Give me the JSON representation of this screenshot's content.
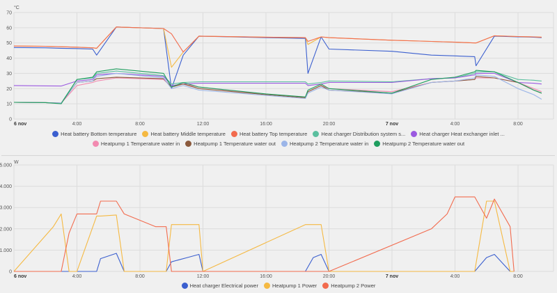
{
  "chart_data": [
    {
      "type": "line",
      "title": "",
      "ylabel": "°C",
      "xlabel": "",
      "ylim": [
        0,
        70
      ],
      "yticks": [
        "0",
        "10",
        "20",
        "30",
        "40",
        "50",
        "60",
        "70"
      ],
      "xticks": [
        "6 nov",
        "4:00",
        "8:00",
        "12:00",
        "16:00",
        "20:00",
        "7 nov",
        "4:00",
        "8:00"
      ],
      "grid": true,
      "legend_position": "bottom",
      "x": [
        "00:00",
        "02:00",
        "03:00",
        "04:00",
        "05:00",
        "05:15",
        "06:30",
        "09:30",
        "10:00",
        "10:45",
        "11:45",
        "16:00",
        "18:30",
        "18:40",
        "19:30",
        "20:00",
        "00:00",
        "02:30",
        "04:00",
        "05:15",
        "05:20",
        "06:30",
        "08:00",
        "09:00",
        "09:30"
      ],
      "series": [
        {
          "name": "Heat battery Bottom temperature",
          "color": "#3b5fcf",
          "values": [
            47,
            46.8,
            46.5,
            46.3,
            46,
            42,
            60.5,
            59.5,
            20,
            42,
            54.5,
            53.5,
            53,
            30,
            54,
            46,
            44.5,
            42,
            41.5,
            41,
            35,
            54.5,
            54,
            53.8,
            53.5
          ]
        },
        {
          "name": "Heat battery Middle temperature",
          "color": "#f5b942",
          "values": [
            48,
            47.8,
            47.5,
            47.2,
            46.8,
            46.5,
            60.5,
            59.5,
            34,
            44,
            54.5,
            53.8,
            53.5,
            49,
            54,
            53.5,
            51.8,
            51,
            50.5,
            50,
            50,
            54.7,
            54.2,
            54,
            53.8
          ]
        },
        {
          "name": "Heat battery Top temperature",
          "color": "#f26b4e",
          "values": [
            48,
            47.8,
            47.5,
            47.2,
            46.8,
            46.5,
            60.5,
            59.5,
            56,
            44,
            54.5,
            53.8,
            53.5,
            51,
            54,
            53.5,
            51.8,
            51,
            50.5,
            50,
            50,
            54.7,
            54.2,
            54,
            53.8
          ]
        },
        {
          "name": "Heat charger Distribution system s...",
          "color": "#5bbf9f",
          "values": [
            11,
            10.8,
            10.5,
            26,
            27,
            30,
            31.5,
            28.5,
            23,
            24,
            24.5,
            24.5,
            24.5,
            23,
            24,
            25,
            24.5,
            26.5,
            27,
            30,
            31,
            31,
            26,
            25.5,
            25
          ]
        },
        {
          "name": "Heat charger Heat exchanger inlet ...",
          "color": "#9b59e0",
          "values": [
            22,
            21.8,
            21.7,
            25,
            26,
            29,
            30,
            28,
            22,
            23,
            23.5,
            23.5,
            23.5,
            22,
            23,
            24,
            24,
            26.5,
            27,
            29,
            30,
            30,
            24,
            23.5,
            23
          ]
        },
        {
          "name": "Heatpump 1 Temperature water in",
          "color": "#f28ab0",
          "values": [
            11,
            10.8,
            10.5,
            22,
            24,
            25,
            27,
            26,
            21,
            23,
            21,
            16,
            14.5,
            18,
            22,
            20,
            18,
            24,
            25,
            26,
            27,
            27,
            24,
            20,
            18
          ]
        },
        {
          "name": "Heatpump 1 Temperature water out",
          "color": "#8b5a3c",
          "values": [
            11,
            10.8,
            10.5,
            24,
            25,
            26.5,
            27.5,
            26.5,
            21,
            23,
            20,
            16,
            14,
            18,
            22,
            19,
            17,
            24,
            25,
            26,
            28,
            27,
            24,
            19,
            17
          ]
        },
        {
          "name": "Heatpump 2 Temperature water in",
          "color": "#9bb5e8",
          "values": [
            11,
            10.8,
            10.5,
            24,
            25,
            28,
            30,
            27,
            20,
            22,
            19,
            15.5,
            13.5,
            17,
            21,
            19,
            16.5,
            24,
            25,
            27,
            29,
            28,
            20,
            16,
            13
          ]
        },
        {
          "name": "Heatpump 2 Temperature water out",
          "color": "#1f9e5f",
          "values": [
            11,
            10.8,
            10,
            26,
            27.5,
            31,
            33,
            30,
            21,
            24,
            21,
            16.5,
            14.5,
            19,
            23,
            20,
            17,
            26,
            27.5,
            31,
            32,
            31,
            24,
            19,
            17
          ]
        }
      ]
    },
    {
      "type": "line",
      "title": "",
      "ylabel": "W",
      "xlabel": "",
      "ylim": [
        0,
        5000
      ],
      "yticks": [
        "0",
        "1.000",
        "2.000",
        "3.000",
        "4.000",
        "5.000"
      ],
      "xticks": [
        "6 nov",
        "4:00",
        "8:00",
        "12:00",
        "16:00",
        "20:00",
        "7 nov",
        "4:00",
        "8:00"
      ],
      "grid": true,
      "legend_position": "bottom",
      "x": [
        "00:00",
        "02:30",
        "03:00",
        "03:30",
        "04:00",
        "05:15",
        "05:30",
        "06:30",
        "07:00",
        "09:00",
        "09:40",
        "10:00",
        "11:00",
        "11:45",
        "12:00",
        "18:30",
        "19:00",
        "19:30",
        "20:00",
        "02:30",
        "03:30",
        "04:00",
        "05:15",
        "06:00",
        "06:30",
        "07:30",
        "07:45"
      ],
      "series": [
        {
          "name": "Heat charger Electrical power",
          "color": "#3b5fcf",
          "values": [
            0,
            0,
            0,
            0,
            0,
            0,
            600,
            850,
            0,
            0,
            0,
            450,
            650,
            800,
            0,
            0,
            650,
            800,
            0,
            0,
            0,
            0,
            0,
            650,
            800,
            0,
            0
          ]
        },
        {
          "name": "Heatpump 1 Power",
          "color": "#f5b942",
          "values": [
            0,
            2100,
            2700,
            0,
            0,
            2600,
            2600,
            2650,
            0,
            0,
            0,
            2200,
            2200,
            2200,
            0,
            2200,
            2200,
            2200,
            0,
            0,
            0,
            0,
            0,
            3300,
            3300,
            0,
            0
          ]
        },
        {
          "name": "Heatpump 2 Power",
          "color": "#f26b4e",
          "values": [
            0,
            0,
            0,
            1800,
            2700,
            2700,
            3300,
            3300,
            2700,
            2100,
            2100,
            0,
            0,
            0,
            0,
            0,
            0,
            0,
            0,
            2000,
            2700,
            3500,
            3500,
            2500,
            3400,
            2100,
            0
          ]
        }
      ]
    }
  ],
  "top_chart": {
    "unit": "°C",
    "legend": [
      {
        "label": "Heat battery Bottom temperature",
        "color": "#3b5fcf"
      },
      {
        "label": "Heat battery Middle temperature",
        "color": "#f5b942"
      },
      {
        "label": "Heat battery Top temperature",
        "color": "#f26b4e"
      },
      {
        "label": "Heat charger Distribution system s...",
        "color": "#5bbf9f"
      },
      {
        "label": "Heat charger Heat exchanger inlet ...",
        "color": "#9b59e0"
      },
      {
        "label": "Heatpump 1 Temperature water in",
        "color": "#f28ab0"
      },
      {
        "label": "Heatpump 1 Temperature water out",
        "color": "#8b5a3c"
      },
      {
        "label": "Heatpump 2 Temperature water in",
        "color": "#9bb5e8"
      },
      {
        "label": "Heatpump 2 Temperature water out",
        "color": "#1f9e5f"
      }
    ]
  },
  "bottom_chart": {
    "unit": "W",
    "legend": [
      {
        "label": "Heat charger Electrical power",
        "color": "#3b5fcf"
      },
      {
        "label": "Heatpump 1 Power",
        "color": "#f5b942"
      },
      {
        "label": "Heatpump 2 Power",
        "color": "#f26b4e"
      }
    ]
  }
}
